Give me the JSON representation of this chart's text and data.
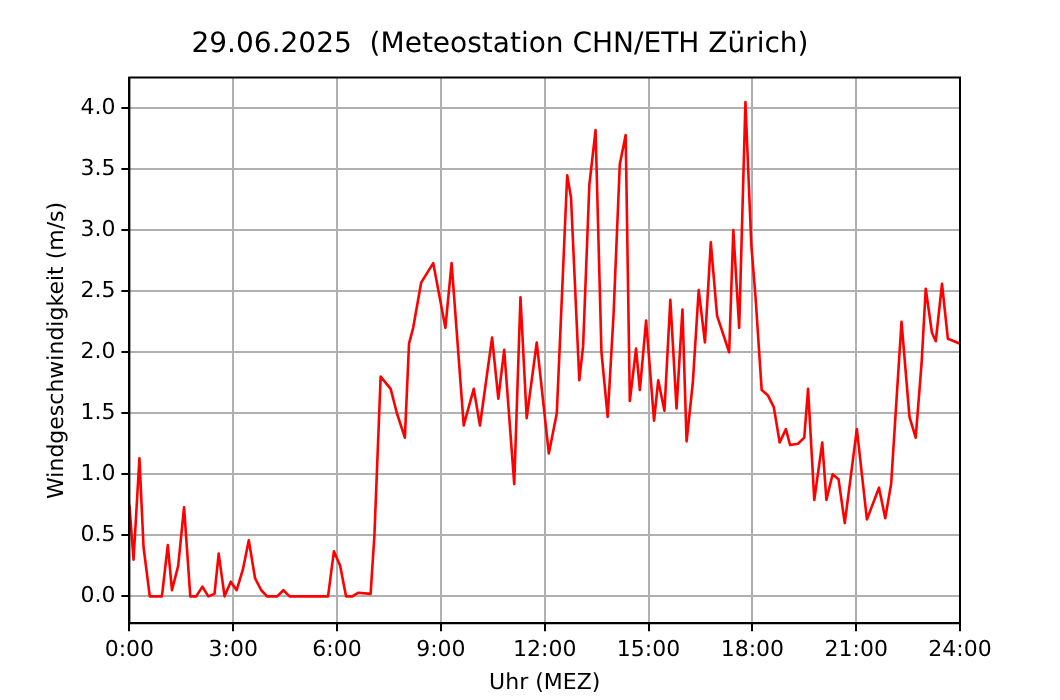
{
  "chart_data": {
    "type": "line",
    "title": "29.06.2025  (Meteostation CHN/ETH Zürich)",
    "xlabel": "Uhr (MEZ)",
    "ylabel": "Windgeschwindigkeit (m/s)",
    "x": [
      0,
      0.12,
      0.29,
      0.41,
      0.59,
      0.94,
      1.11,
      1.23,
      1.41,
      1.58,
      1.76,
      1.93,
      2.11,
      2.28,
      2.46,
      2.58,
      2.75,
      2.93,
      3.1,
      3.28,
      3.45,
      3.63,
      3.81,
      3.98,
      4.27,
      4.45,
      4.63,
      5.74,
      5.91,
      6.09,
      6.26,
      6.44,
      6.62,
      6.97,
      7.08,
      7.26,
      7.55,
      7.73,
      7.96,
      8.08,
      8.2,
      8.43,
      8.78,
      9.13,
      9.31,
      9.66,
      9.95,
      10.13,
      10.48,
      10.66,
      10.83,
      11.12,
      11.3,
      11.48,
      11.77,
      12.12,
      12.35,
      12.65,
      12.76,
      13.0,
      13.11,
      13.29,
      13.47,
      13.64,
      13.82,
      13.99,
      14.17,
      14.34,
      14.46,
      14.64,
      14.75,
      14.93,
      15.16,
      15.28,
      15.46,
      15.63,
      15.81,
      15.98,
      16.1,
      16.28,
      16.45,
      16.63,
      16.8,
      16.98,
      17.33,
      17.45,
      17.62,
      17.8,
      17.97,
      18.09,
      18.27,
      18.44,
      18.62,
      18.79,
      18.97,
      19.09,
      19.32,
      19.5,
      19.61,
      19.79,
      20.02,
      20.14,
      20.32,
      20.49,
      20.67,
      21.02,
      21.31,
      21.66,
      21.84,
      22.01,
      22.31,
      22.54,
      22.72,
      22.89,
      23.01,
      23.19,
      23.3,
      23.48,
      23.65,
      23.83,
      24.0
    ],
    "series": [
      {
        "color": "#ff0000",
        "values": [
          0.75,
          0.3,
          1.13,
          0.4,
          0.0,
          0.0,
          0.42,
          0.05,
          0.25,
          0.73,
          0.0,
          0.0,
          0.08,
          0.0,
          0.02,
          0.35,
          0.0,
          0.12,
          0.05,
          0.22,
          0.46,
          0.15,
          0.05,
          0.0,
          0.0,
          0.05,
          0.0,
          0.0,
          0.37,
          0.25,
          0.0,
          0.0,
          0.03,
          0.02,
          0.5,
          1.8,
          1.7,
          1.5,
          1.3,
          2.07,
          2.2,
          2.57,
          2.73,
          2.2,
          2.73,
          1.4,
          1.7,
          1.4,
          2.12,
          1.62,
          2.02,
          0.92,
          2.45,
          1.46,
          2.08,
          1.17,
          1.5,
          3.45,
          3.27,
          1.77,
          2.05,
          3.37,
          3.82,
          2.0,
          1.47,
          2.31,
          3.54,
          3.78,
          1.6,
          2.03,
          1.69,
          2.26,
          1.44,
          1.77,
          1.52,
          2.43,
          1.54,
          2.35,
          1.27,
          1.75,
          2.51,
          2.08,
          2.9,
          2.3,
          2.0,
          3.0,
          2.2,
          4.05,
          2.88,
          2.46,
          1.69,
          1.65,
          1.55,
          1.26,
          1.37,
          1.24,
          1.25,
          1.3,
          1.7,
          0.79,
          1.26,
          0.79,
          1.0,
          0.96,
          0.6,
          1.37,
          0.63,
          0.89,
          0.64,
          0.92,
          2.25,
          1.47,
          1.3,
          1.91,
          2.52,
          2.16,
          2.09,
          2.56,
          2.11,
          2.09,
          2.07
        ]
      }
    ],
    "xlim": [
      0,
      24
    ],
    "xticks": [
      {
        "value": 0,
        "label": "0:00"
      },
      {
        "value": 3,
        "label": "3:00"
      },
      {
        "value": 6,
        "label": "6:00"
      },
      {
        "value": 9,
        "label": "9:00"
      },
      {
        "value": 12,
        "label": "12:00"
      },
      {
        "value": 15,
        "label": "15:00"
      },
      {
        "value": 18,
        "label": "18:00"
      },
      {
        "value": 21,
        "label": "21:00"
      },
      {
        "value": 24,
        "label": "24:00"
      }
    ],
    "ylim": [
      -0.22,
      4.25
    ],
    "yticks": [
      {
        "value": 0,
        "label": "0.0"
      },
      {
        "value": 0.5,
        "label": "0.5"
      },
      {
        "value": 1,
        "label": "1.0"
      },
      {
        "value": 1.5,
        "label": "1.5"
      },
      {
        "value": 2,
        "label": "2.0"
      },
      {
        "value": 2.5,
        "label": "2.5"
      },
      {
        "value": 3,
        "label": "3.0"
      },
      {
        "value": 3.5,
        "label": "3.5"
      },
      {
        "value": 4,
        "label": "4.0"
      }
    ],
    "grid": true,
    "marker": "none",
    "line_style": "solid"
  }
}
